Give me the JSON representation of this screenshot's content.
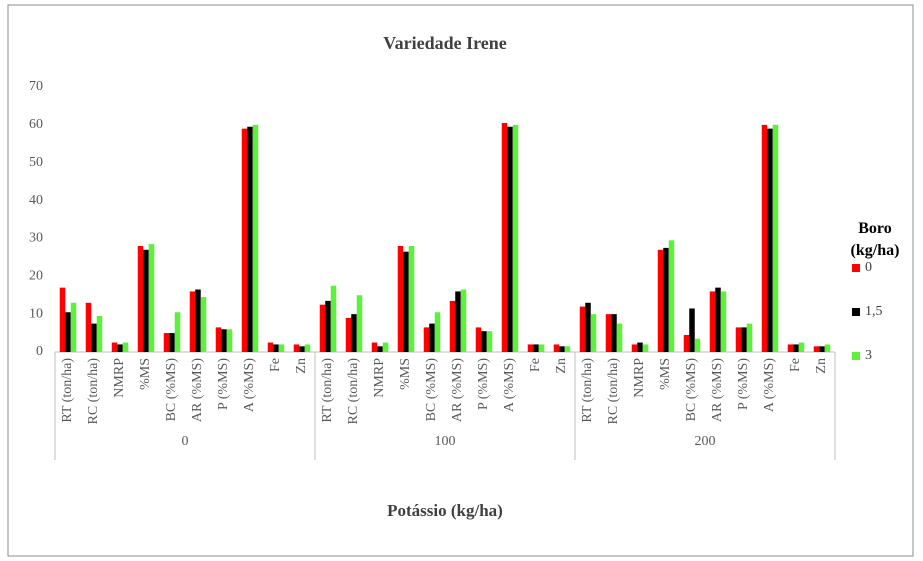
{
  "chart_data": {
    "type": "bar",
    "title": "Variedade Irene",
    "x_label": "Potássio (kg/ha)",
    "legend_title": "Boro (kg/ha)",
    "legend": "right",
    "grid": false,
    "groups": [
      "0",
      "100",
      "200"
    ],
    "categories": [
      "RT (ton/ha)",
      "RC (ton/ha)",
      "NMRP",
      "%MS",
      "BC (%MS)",
      "AR (%MS)",
      "P (%MS)",
      "A (%MS)",
      "Fe",
      "Zn",
      "RT (ton/ha)",
      "RC (ton/ha)",
      "NMRP",
      "%MS",
      "BC (%MS)",
      "AR (%MS)",
      "P (%MS)",
      "A (%MS)",
      "Fe",
      "Zn",
      "RT (ton/ha)",
      "RC (ton/ha)",
      "NMRP",
      "%MS",
      "BC (%MS)",
      "AR (%MS)",
      "P (%MS)",
      "A (%MS)",
      "Fe",
      "Zn"
    ],
    "series": [
      {
        "name": "0",
        "color": "#ff0000",
        "values": [
          17,
          13,
          2.5,
          28,
          5,
          16,
          6.5,
          59,
          2.5,
          2,
          12.5,
          9,
          2.5,
          28,
          6.5,
          13.5,
          6.5,
          60.5,
          2,
          2,
          12,
          10,
          2,
          27,
          4.5,
          16,
          6.5,
          60,
          2,
          1.5
        ]
      },
      {
        "name": "1,5",
        "color": "#000000",
        "values": [
          10.5,
          7.5,
          2,
          27,
          5,
          16.5,
          6,
          59.5,
          2,
          1.5,
          13.5,
          10,
          1.5,
          26.5,
          7.5,
          16,
          5.5,
          59.5,
          2,
          1.5,
          13,
          10,
          2.5,
          27.5,
          11.5,
          17,
          6.5,
          59,
          2,
          1.5
        ]
      },
      {
        "name": "3",
        "color": "#5cf23c",
        "values": [
          13,
          9.5,
          2.5,
          28.5,
          10.5,
          14.5,
          6,
          60,
          2,
          2,
          17.5,
          15,
          2.5,
          28,
          10.5,
          16.5,
          5.5,
          60,
          2,
          1.5,
          10,
          7.5,
          2,
          29.5,
          3.5,
          16,
          7.5,
          60,
          2.5,
          2
        ]
      }
    ],
    "ylim": [
      0,
      70
    ],
    "yticks": [
      0,
      10,
      20,
      30,
      40,
      50,
      60,
      70
    ]
  }
}
